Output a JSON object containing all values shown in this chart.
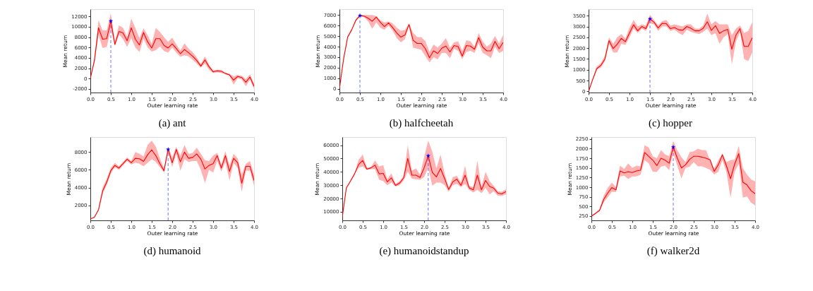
{
  "chart_data": [
    {
      "type": "line",
      "title": "(a) ant",
      "xlabel": "Outer learning rate",
      "ylabel": "Mean return",
      "xlim": [
        0,
        4
      ],
      "ylim": [
        -2700,
        13400
      ],
      "xticks": [
        {
          "value": 0,
          "label": "0.0"
        },
        {
          "value": 0.5,
          "label": "0.5"
        },
        {
          "value": 1,
          "label": "1.0"
        },
        {
          "value": 1.5,
          "label": "1.5"
        },
        {
          "value": 2,
          "label": "2.0"
        },
        {
          "value": 2.5,
          "label": "2.5"
        },
        {
          "value": 3,
          "label": "3.0"
        },
        {
          "value": 3.5,
          "label": "3.5"
        },
        {
          "value": 4,
          "label": "4.0"
        }
      ],
      "yticks": [
        -2000,
        0,
        2000,
        4000,
        6000,
        8000,
        10000,
        12000
      ],
      "grid": false,
      "x": [
        0,
        0.1,
        0.2,
        0.3,
        0.4,
        0.5,
        0.6,
        0.7,
        0.8,
        0.9,
        1.0,
        1.1,
        1.2,
        1.3,
        1.4,
        1.5,
        1.6,
        1.7,
        1.8,
        1.9,
        2.0,
        2.1,
        2.2,
        2.3,
        2.4,
        2.5,
        2.6,
        2.7,
        2.8,
        2.9,
        3.0,
        3.1,
        3.2,
        3.3,
        3.4,
        3.5,
        3.6,
        3.7,
        3.8,
        3.9,
        4.0
      ],
      "series": [
        {
          "color": "#ff0000",
          "values": [
            0,
            3500,
            9800,
            7600,
            7700,
            11100,
            6600,
            9100,
            8800,
            7300,
            9800,
            7600,
            6500,
            8900,
            7100,
            5900,
            7700,
            7700,
            6400,
            5900,
            6700,
            5800,
            4800,
            5600,
            5000,
            4300,
            3500,
            2400,
            3600,
            2300,
            1300,
            1500,
            1400,
            1000,
            700,
            -300,
            400,
            200,
            -700,
            300,
            -1500
          ],
          "lower": [
            0,
            3000,
            8500,
            5900,
            6100,
            9500,
            6300,
            8500,
            7600,
            6100,
            7800,
            6000,
            5100,
            7700,
            6000,
            5200,
            5500,
            6200,
            5300,
            5000,
            6000,
            5000,
            4200,
            4500,
            4300,
            3600,
            2900,
            2100,
            2900,
            1700,
            1100,
            1200,
            1100,
            800,
            500,
            -1200,
            100,
            -200,
            -1500,
            -200,
            -2000
          ],
          "upper": [
            0,
            4000,
            11300,
            9300,
            9300,
            12600,
            7200,
            10300,
            9800,
            8000,
            11600,
            9800,
            7800,
            9700,
            8400,
            6700,
            9800,
            9000,
            8000,
            7100,
            7900,
            6600,
            5400,
            6800,
            5800,
            5100,
            4100,
            2800,
            4300,
            2700,
            1600,
            1700,
            1700,
            1100,
            900,
            400,
            700,
            500,
            -100,
            800,
            -1000
          ]
        },
        {
          "type": "scatter",
          "marker": "star",
          "color": "#0000ff",
          "x": [
            0.5
          ],
          "values": [
            11100
          ]
        }
      ],
      "ref_lines": [
        {
          "axis": "x",
          "value": 0.5,
          "color": "#0000ff",
          "line_style": "dashed"
        }
      ]
    },
    {
      "type": "line",
      "title": "(b) halfcheetah",
      "xlabel": "Outer learning rate",
      "ylabel": "Mean return",
      "xlim": [
        0,
        4
      ],
      "ylim": [
        -350,
        7550
      ],
      "xticks": [
        {
          "value": 0,
          "label": "0.0"
        },
        {
          "value": 0.5,
          "label": "0.5"
        },
        {
          "value": 1,
          "label": "1.0"
        },
        {
          "value": 1.5,
          "label": "1.5"
        },
        {
          "value": 2,
          "label": "2.0"
        },
        {
          "value": 2.5,
          "label": "2.5"
        },
        {
          "value": 3,
          "label": "3.0"
        },
        {
          "value": 3.5,
          "label": "3.5"
        },
        {
          "value": 4,
          "label": "4.0"
        }
      ],
      "yticks": [
        0,
        1000,
        2000,
        3000,
        4000,
        5000,
        6000,
        7000
      ],
      "grid": false,
      "x": [
        0,
        0.1,
        0.2,
        0.3,
        0.4,
        0.5,
        0.6,
        0.7,
        0.8,
        0.9,
        1.0,
        1.1,
        1.2,
        1.3,
        1.4,
        1.5,
        1.6,
        1.7,
        1.8,
        1.9,
        2.0,
        2.1,
        2.2,
        2.3,
        2.4,
        2.5,
        2.6,
        2.7,
        2.8,
        2.9,
        3.0,
        3.1,
        3.2,
        3.3,
        3.4,
        3.5,
        3.6,
        3.7,
        3.8,
        3.9,
        4.0
      ],
      "series": [
        {
          "color": "#ff0000",
          "values": [
            0,
            2800,
            4900,
            5600,
            6500,
            6950,
            6900,
            6700,
            6400,
            6800,
            6300,
            5900,
            6250,
            5800,
            5300,
            4900,
            5100,
            6100,
            4600,
            4300,
            4300,
            3800,
            2950,
            3600,
            3350,
            3850,
            4050,
            3500,
            4100,
            4000,
            3100,
            4100,
            4050,
            3750,
            4850,
            3950,
            3600,
            3600,
            4500,
            3800,
            4400
          ],
          "lower": [
            0,
            2700,
            4800,
            5500,
            6400,
            6850,
            6800,
            6400,
            5700,
            6300,
            5800,
            5600,
            6000,
            5500,
            4800,
            4400,
            4700,
            6000,
            3900,
            3800,
            3700,
            3100,
            2500,
            3000,
            2800,
            3400,
            3400,
            2900,
            3800,
            3600,
            2800,
            3500,
            3600,
            3400,
            4300,
            3400,
            3200,
            2900,
            4000,
            3400,
            3600
          ],
          "upper": [
            0,
            2900,
            5000,
            5700,
            6600,
            7050,
            7000,
            7000,
            7000,
            6900,
            6500,
            6300,
            6400,
            6200,
            5800,
            5500,
            5600,
            6200,
            5300,
            4900,
            4900,
            4500,
            3500,
            4200,
            3900,
            4300,
            4800,
            3900,
            4400,
            4500,
            3600,
            4600,
            4500,
            4000,
            5300,
            4500,
            4000,
            4300,
            5000,
            4300,
            5100
          ]
        },
        {
          "type": "scatter",
          "marker": "star",
          "color": "#0000ff",
          "x": [
            0.5
          ],
          "values": [
            6950
          ]
        }
      ],
      "ref_lines": [
        {
          "axis": "x",
          "value": 0.5,
          "color": "#0000ff",
          "line_style": "dashed"
        }
      ]
    },
    {
      "type": "line",
      "title": "(c) hopper",
      "xlabel": "Outer learning rate",
      "ylabel": "Mean return",
      "xlim": [
        0,
        4
      ],
      "ylim": [
        -50,
        3800
      ],
      "xticks": [
        {
          "value": 0,
          "label": "0.0"
        },
        {
          "value": 0.5,
          "label": "0.5"
        },
        {
          "value": 1,
          "label": "1.0"
        },
        {
          "value": 1.5,
          "label": "1.5"
        },
        {
          "value": 2,
          "label": "2.0"
        },
        {
          "value": 2.5,
          "label": "2.5"
        },
        {
          "value": 3,
          "label": "3.0"
        },
        {
          "value": 3.5,
          "label": "3.5"
        },
        {
          "value": 4,
          "label": "4.0"
        }
      ],
      "yticks": [
        0,
        500,
        1000,
        1500,
        2000,
        2500,
        3000,
        3500
      ],
      "grid": false,
      "x": [
        0,
        0.1,
        0.2,
        0.3,
        0.4,
        0.5,
        0.6,
        0.7,
        0.8,
        0.9,
        1.0,
        1.1,
        1.2,
        1.3,
        1.4,
        1.5,
        1.6,
        1.7,
        1.8,
        1.9,
        2.0,
        2.1,
        2.2,
        2.3,
        2.4,
        2.5,
        2.6,
        2.7,
        2.8,
        2.9,
        3.0,
        3.1,
        3.2,
        3.3,
        3.4,
        3.5,
        3.6,
        3.7,
        3.8,
        3.9,
        4.0
      ],
      "series": [
        {
          "color": "#ff0000",
          "values": [
            0,
            550,
            1050,
            1200,
            1500,
            2350,
            1980,
            2180,
            2450,
            2300,
            2700,
            3080,
            2800,
            3000,
            2900,
            3350,
            3200,
            2930,
            3150,
            3130,
            2900,
            2950,
            2850,
            2830,
            3000,
            2920,
            2800,
            2800,
            2920,
            3220,
            2820,
            3040,
            2680,
            2800,
            2870,
            1950,
            2600,
            2900,
            2080,
            2080,
            2480
          ],
          "lower": [
            0,
            500,
            1000,
            1100,
            1400,
            2200,
            1800,
            1800,
            2200,
            2150,
            2500,
            2900,
            2700,
            2900,
            2800,
            3150,
            3100,
            2800,
            3000,
            3000,
            2800,
            2850,
            2700,
            2600,
            2850,
            2750,
            2700,
            2650,
            2750,
            2900,
            2600,
            2700,
            2200,
            2500,
            2650,
            1250,
            2300,
            2750,
            1500,
            1400,
            1800
          ],
          "upper": [
            0,
            600,
            1150,
            1300,
            1650,
            2500,
            2200,
            2500,
            2650,
            2450,
            2950,
            3300,
            3000,
            3100,
            3050,
            3550,
            3300,
            3050,
            3250,
            3300,
            3050,
            3100,
            3050,
            3000,
            3100,
            3100,
            2900,
            2900,
            3050,
            3600,
            3100,
            3250,
            3100,
            3100,
            3100,
            2600,
            2900,
            3050,
            2700,
            2800,
            3200
          ]
        },
        {
          "type": "scatter",
          "marker": "star",
          "color": "#0000ff",
          "x": [
            1.5
          ],
          "values": [
            3350
          ]
        }
      ],
      "ref_lines": [
        {
          "axis": "x",
          "value": 1.5,
          "color": "#0000ff",
          "line_style": "dashed"
        }
      ]
    },
    {
      "type": "line",
      "title": "(d) humanoid",
      "xlabel": "Outer learning rate",
      "ylabel": "Mean return",
      "xlim": [
        0,
        4
      ],
      "ylim": [
        300,
        9700
      ],
      "xticks": [
        {
          "value": 0,
          "label": "0.0"
        },
        {
          "value": 0.5,
          "label": "0.5"
        },
        {
          "value": 1,
          "label": "1.0"
        },
        {
          "value": 1.5,
          "label": "1.5"
        },
        {
          "value": 2,
          "label": "2.0"
        },
        {
          "value": 2.5,
          "label": "2.5"
        },
        {
          "value": 3,
          "label": "3.0"
        },
        {
          "value": 3.5,
          "label": "3.5"
        },
        {
          "value": 4,
          "label": "4.0"
        }
      ],
      "yticks": [
        2000,
        4000,
        6000,
        8000
      ],
      "grid": false,
      "x": [
        0,
        0.1,
        0.2,
        0.3,
        0.4,
        0.5,
        0.6,
        0.7,
        0.8,
        0.9,
        1.0,
        1.1,
        1.2,
        1.3,
        1.4,
        1.5,
        1.6,
        1.7,
        1.8,
        1.9,
        2.0,
        2.1,
        2.2,
        2.3,
        2.4,
        2.5,
        2.6,
        2.7,
        2.8,
        2.9,
        3.0,
        3.1,
        3.2,
        3.3,
        3.4,
        3.5,
        3.6,
        3.7,
        3.8,
        3.9,
        4.0
      ],
      "series": [
        {
          "color": "#ff0000",
          "values": [
            450,
            650,
            1500,
            3600,
            4600,
            5900,
            6500,
            6200,
            6700,
            7200,
            6800,
            7300,
            7250,
            6950,
            7700,
            8250,
            7600,
            6700,
            5900,
            8300,
            6800,
            8300,
            6900,
            8000,
            7300,
            7400,
            7800,
            7200,
            6100,
            6500,
            6700,
            7600,
            6200,
            7600,
            5800,
            7300,
            6800,
            4500,
            6400,
            6400,
            4800
          ],
          "lower": [
            450,
            600,
            1400,
            3300,
            4300,
            5600,
            6300,
            6000,
            6500,
            7000,
            6600,
            6800,
            6700,
            6400,
            6800,
            7200,
            6900,
            6300,
            5700,
            8000,
            6300,
            7800,
            5900,
            7200,
            6900,
            7000,
            7000,
            6000,
            4500,
            6000,
            5700,
            7000,
            5800,
            6900,
            4800,
            6800,
            6200,
            3500,
            5900,
            5900,
            4200
          ],
          "upper": [
            450,
            700,
            1600,
            4000,
            5000,
            6200,
            6800,
            6400,
            6900,
            7400,
            7000,
            8000,
            7800,
            7500,
            8800,
            9300,
            8600,
            7300,
            6200,
            8600,
            7400,
            8600,
            7600,
            8800,
            7800,
            7900,
            8500,
            7800,
            7100,
            7000,
            7600,
            7900,
            6600,
            8100,
            6500,
            7800,
            7300,
            5500,
            6700,
            7000,
            5500
          ]
        },
        {
          "type": "scatter",
          "marker": "star",
          "color": "#0000ff",
          "x": [
            1.9
          ],
          "values": [
            8300
          ]
        }
      ],
      "ref_lines": [
        {
          "axis": "x",
          "value": 1.9,
          "color": "#0000ff",
          "line_style": "dashed"
        }
      ]
    },
    {
      "type": "line",
      "title": "(e) humanoidstandup",
      "xlabel": "Outer learning rate",
      "ylabel": "Mean return",
      "xlim": [
        0,
        4
      ],
      "ylim": [
        3600,
        66100
      ],
      "xticks": [
        {
          "value": 0,
          "label": "0.0"
        },
        {
          "value": 0.5,
          "label": "0.5"
        },
        {
          "value": 1,
          "label": "1.0"
        },
        {
          "value": 1.5,
          "label": "1.5"
        },
        {
          "value": 2,
          "label": "2.0"
        },
        {
          "value": 2.5,
          "label": "2.5"
        },
        {
          "value": 3,
          "label": "3.0"
        },
        {
          "value": 3.5,
          "label": "3.5"
        },
        {
          "value": 4,
          "label": "4.0"
        }
      ],
      "yticks": [
        10000,
        20000,
        30000,
        40000,
        50000,
        60000
      ],
      "grid": false,
      "x": [
        0,
        0.1,
        0.2,
        0.3,
        0.4,
        0.5,
        0.6,
        0.7,
        0.8,
        0.9,
        1.0,
        1.1,
        1.2,
        1.3,
        1.4,
        1.5,
        1.6,
        1.7,
        1.8,
        1.9,
        2.0,
        2.1,
        2.2,
        2.3,
        2.4,
        2.5,
        2.6,
        2.7,
        2.8,
        2.9,
        3.0,
        3.1,
        3.2,
        3.3,
        3.4,
        3.5,
        3.6,
        3.7,
        3.8,
        3.9,
        4.0
      ],
      "series": [
        {
          "color": "#ff0000",
          "values": [
            6000,
            28000,
            33000,
            38500,
            45500,
            48500,
            42000,
            43000,
            45000,
            38500,
            38800,
            32500,
            35500,
            29800,
            31500,
            35500,
            50000,
            37500,
            37500,
            35800,
            43000,
            52000,
            39500,
            36200,
            42500,
            35000,
            26800,
            32500,
            34500,
            29800,
            37500,
            28000,
            26500,
            37500,
            26500,
            33500,
            29000,
            27800,
            24000,
            23500,
            25200
          ],
          "lower": [
            6000,
            27500,
            32500,
            38000,
            43000,
            44000,
            41500,
            42000,
            42000,
            34000,
            33000,
            30000,
            32000,
            29000,
            30000,
            33500,
            40000,
            35000,
            34500,
            34000,
            36000,
            43000,
            29500,
            32000,
            32000,
            30000,
            25000,
            30000,
            31000,
            28500,
            31000,
            26500,
            24500,
            26500,
            24000,
            28000,
            23000,
            25500,
            22000,
            22000,
            23000
          ],
          "upper": [
            6000,
            28500,
            33500,
            39000,
            49000,
            53000,
            43000,
            43500,
            48500,
            44000,
            45000,
            34500,
            39000,
            31000,
            33000,
            37000,
            60000,
            41000,
            42500,
            38000,
            51000,
            63500,
            55000,
            42500,
            53000,
            39000,
            28000,
            36000,
            37000,
            32000,
            44500,
            29500,
            28500,
            48500,
            29000,
            40000,
            33000,
            29500,
            25500,
            25000,
            27000
          ]
        },
        {
          "type": "scatter",
          "marker": "star",
          "color": "#0000ff",
          "x": [
            2.1
          ],
          "values": [
            52000
          ]
        }
      ],
      "ref_lines": [
        {
          "axis": "x",
          "value": 2.1,
          "color": "#0000ff",
          "line_style": "dashed"
        }
      ]
    },
    {
      "type": "line",
      "title": "(f) walker2d",
      "xlabel": "Outer learning rate",
      "ylabel": "Mean return",
      "xlim": [
        0,
        4
      ],
      "ylim": [
        140,
        2300
      ],
      "xticks": [
        {
          "value": 0,
          "label": "0.0"
        },
        {
          "value": 0.5,
          "label": "0.5"
        },
        {
          "value": 1,
          "label": "1.0"
        },
        {
          "value": 1.5,
          "label": "1.5"
        },
        {
          "value": 2,
          "label": "2.0"
        },
        {
          "value": 2.5,
          "label": "2.5"
        },
        {
          "value": 3,
          "label": "3.0"
        },
        {
          "value": 3.5,
          "label": "3.5"
        },
        {
          "value": 4,
          "label": "4.0"
        }
      ],
      "yticks": [
        250,
        500,
        750,
        1000,
        1250,
        1500,
        1750,
        2000,
        2250
      ],
      "grid": false,
      "x": [
        0,
        0.1,
        0.2,
        0.3,
        0.4,
        0.5,
        0.6,
        0.7,
        0.8,
        0.9,
        1.0,
        1.1,
        1.2,
        1.3,
        1.4,
        1.5,
        1.6,
        1.7,
        1.8,
        1.9,
        2.0,
        2.1,
        2.2,
        2.3,
        2.4,
        2.5,
        2.6,
        2.7,
        2.8,
        2.9,
        3.0,
        3.1,
        3.2,
        3.3,
        3.4,
        3.5,
        3.6,
        3.7,
        3.8,
        3.9,
        4.0
      ],
      "series": [
        {
          "color": "#ff0000",
          "values": [
            250,
            320,
            400,
            680,
            850,
            990,
            930,
            1420,
            1370,
            1400,
            1380,
            1420,
            1440,
            1900,
            1800,
            1700,
            1560,
            1750,
            1700,
            1620,
            2040,
            1750,
            1500,
            1580,
            1720,
            1800,
            1800,
            1780,
            1750,
            1710,
            1410,
            1580,
            1840,
            1550,
            1220,
            1600,
            1870,
            1130,
            1060,
            910,
            830
          ],
          "lower": [
            250,
            300,
            380,
            600,
            740,
            880,
            870,
            1280,
            1300,
            1210,
            1280,
            1280,
            1320,
            1700,
            1620,
            1400,
            1400,
            1530,
            1560,
            1440,
            1880,
            1550,
            1230,
            1500,
            1530,
            1650,
            1540,
            1540,
            1500,
            1450,
            1330,
            1400,
            1700,
            1380,
            730,
            1400,
            1600,
            730,
            760,
            600,
            530
          ],
          "upper": [
            250,
            340,
            430,
            780,
            980,
            1120,
            1000,
            1560,
            1470,
            1620,
            1500,
            1560,
            1540,
            2090,
            2030,
            1800,
            1750,
            1960,
            1850,
            1800,
            2200,
            1950,
            1780,
            1650,
            1910,
            1930,
            2000,
            1960,
            1960,
            1700,
            1480,
            1700,
            1870,
            1650,
            1700,
            1720,
            2070,
            1500,
            1330,
            1200,
            1150
          ]
        },
        {
          "type": "scatter",
          "marker": "star",
          "color": "#0000ff",
          "x": [
            2.0
          ],
          "values": [
            2040
          ]
        }
      ],
      "ref_lines": [
        {
          "axis": "x",
          "value": 2.0,
          "color": "#0000ff",
          "line_style": "dashed"
        }
      ]
    }
  ]
}
